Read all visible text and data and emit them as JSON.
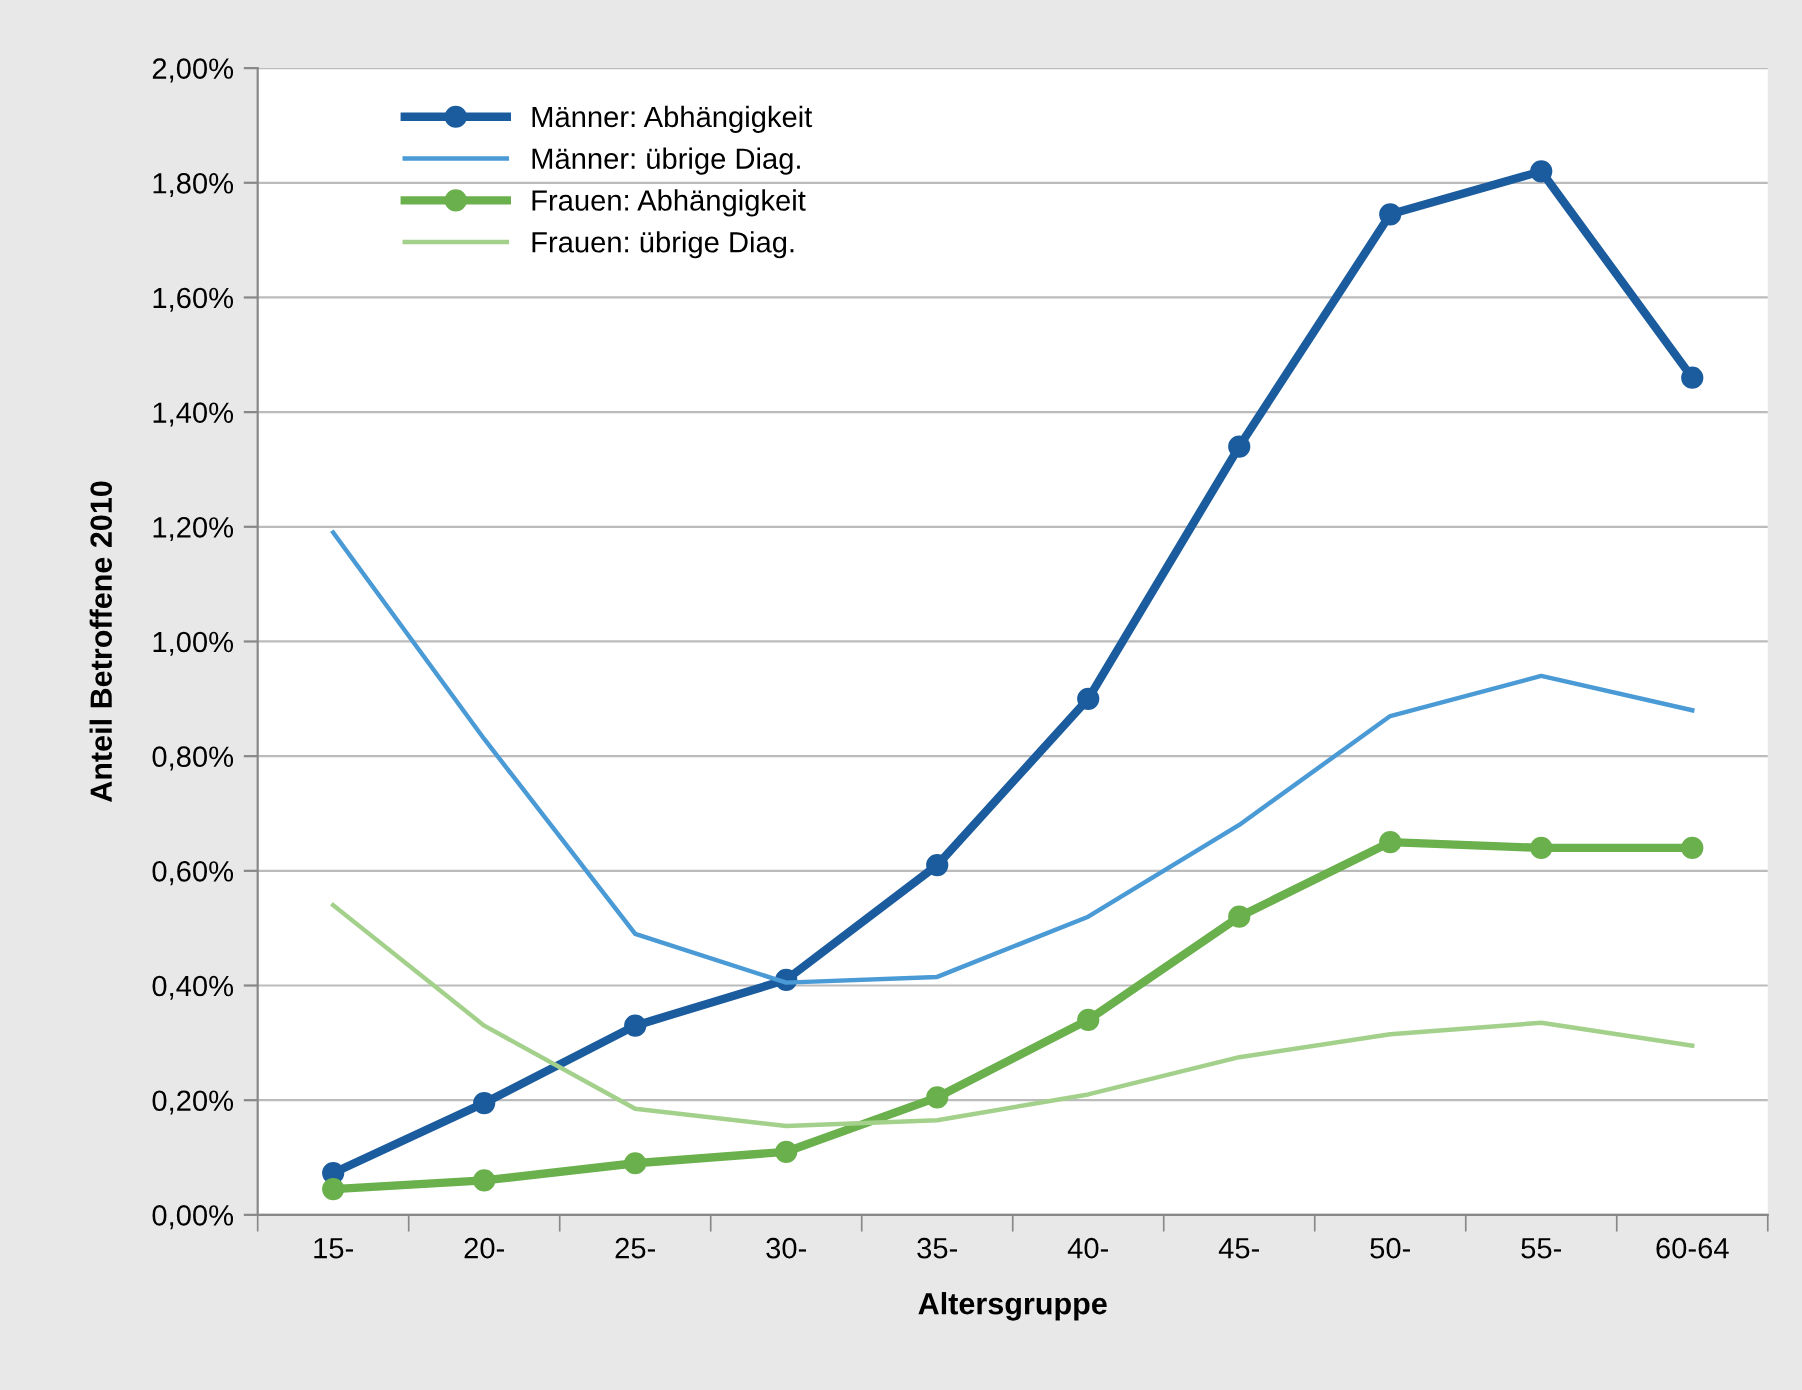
{
  "chart_data": {
    "type": "line",
    "xlabel": "Altersgruppe",
    "ylabel": "Anteil Betroffene 2010",
    "categories": [
      "15-",
      "20-",
      "25-",
      "30-",
      "35-",
      "40-",
      "45-",
      "50-",
      "55-",
      "60-64"
    ],
    "series": [
      {
        "name": "Männer: Abhängigkeit",
        "color": "#1b5c9e",
        "marker": "circle",
        "values": [
          0.073,
          0.195,
          0.33,
          0.41,
          0.61,
          0.9,
          1.34,
          1.745,
          1.82,
          1.46
        ]
      },
      {
        "name": "Männer: übrige Diag.",
        "color": "#4a9ad6",
        "marker": "none",
        "values": [
          1.19,
          0.83,
          0.49,
          0.405,
          0.415,
          0.52,
          0.68,
          0.87,
          0.94,
          0.88
        ]
      },
      {
        "name": "Frauen: Abhängigkeit",
        "color": "#6ab04c",
        "marker": "circle",
        "values": [
          0.045,
          0.06,
          0.09,
          0.11,
          0.205,
          0.34,
          0.52,
          0.65,
          0.64,
          0.64
        ]
      },
      {
        "name": "Frauen: übrige Diag.",
        "color": "#a3d18c",
        "marker": "none",
        "values": [
          0.54,
          0.33,
          0.185,
          0.155,
          0.165,
          0.21,
          0.275,
          0.315,
          0.335,
          0.295
        ]
      }
    ],
    "ylim": [
      0,
      2
    ],
    "yticks": [
      {
        "value": 0,
        "label": "0,00%"
      },
      {
        "value": 0.2,
        "label": "0,20%"
      },
      {
        "value": 0.4,
        "label": "0,40%"
      },
      {
        "value": 0.6,
        "label": "0,60%"
      },
      {
        "value": 0.8,
        "label": "0,80%"
      },
      {
        "value": 1.0,
        "label": "1,00%"
      },
      {
        "value": 1.2,
        "label": "1,20%"
      },
      {
        "value": 1.4,
        "label": "1,40%"
      },
      {
        "value": 1.6,
        "label": "1,60%"
      },
      {
        "value": 1.8,
        "label": "1,80%"
      },
      {
        "value": 2.0,
        "label": "2,00%"
      }
    ],
    "grid": "y",
    "legend": "top left",
    "line_style": "solid"
  }
}
